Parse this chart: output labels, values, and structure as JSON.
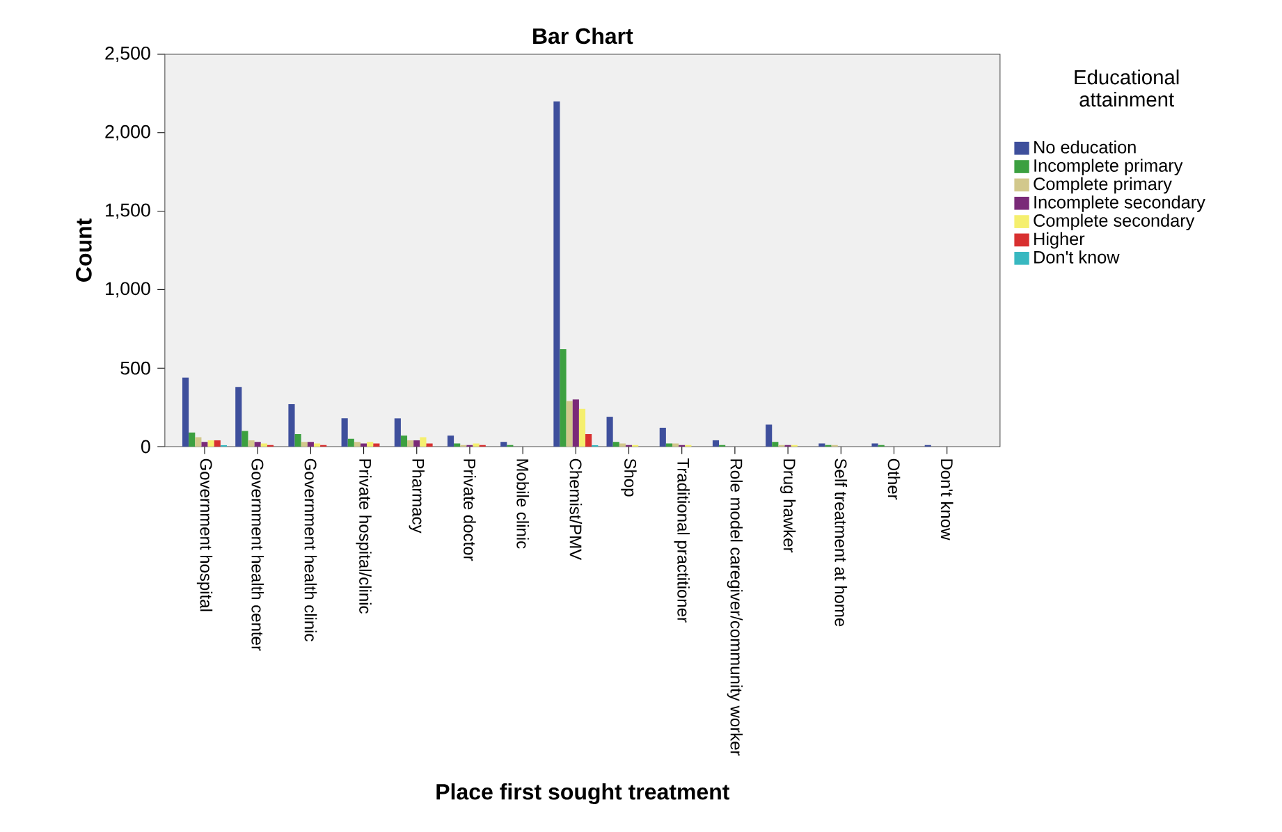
{
  "chart_data": {
    "type": "bar",
    "title": "Bar Chart",
    "xlabel": "Place first sought treatment",
    "ylabel": "Count",
    "legend_title": "Educational attainment",
    "legend": "right",
    "grid": false,
    "categories": [
      "Government hospital",
      "Government health center",
      "Government health clinic",
      "Private hospital/clinic",
      "Pharmacy",
      "Private doctor",
      "Mobile clinic",
      "Chemist/PMV",
      "Shop",
      "Traditional practitioner",
      "Role model caregiver/community worker",
      "Drug hawker",
      "Self treatment at home",
      "Other",
      "Don't know"
    ],
    "ylim": [
      0,
      2500
    ],
    "yticks": [
      0,
      500,
      {
        "value": 1000,
        "label": "1,000"
      },
      {
        "value": 1500,
        "label": "1,500"
      },
      {
        "value": 2000,
        "label": "2,000"
      },
      {
        "value": 2500,
        "label": "2,500"
      }
    ],
    "series": [
      {
        "name": "No education",
        "color": "#3e4f9c",
        "values": [
          440,
          380,
          270,
          180,
          180,
          70,
          30,
          2200,
          190,
          120,
          40,
          140,
          20,
          20,
          10
        ]
      },
      {
        "name": "Incomplete primary",
        "color": "#3ca040",
        "values": [
          90,
          100,
          80,
          50,
          70,
          20,
          10,
          620,
          30,
          20,
          10,
          30,
          10,
          10,
          0
        ]
      },
      {
        "name": "Complete primary",
        "color": "#d2c88c",
        "values": [
          60,
          40,
          30,
          30,
          40,
          10,
          0,
          290,
          20,
          20,
          0,
          10,
          10,
          0,
          0
        ]
      },
      {
        "name": "Incomplete secondary",
        "color": "#7a2a78",
        "values": [
          30,
          30,
          30,
          20,
          40,
          10,
          0,
          300,
          10,
          10,
          0,
          10,
          0,
          0,
          0
        ]
      },
      {
        "name": "Complete secondary",
        "color": "#f5ef6e",
        "values": [
          40,
          20,
          20,
          30,
          60,
          20,
          0,
          240,
          10,
          10,
          0,
          10,
          0,
          0,
          0
        ]
      },
      {
        "name": "Higher",
        "color": "#d83030",
        "values": [
          40,
          10,
          10,
          20,
          20,
          10,
          0,
          80,
          0,
          0,
          0,
          0,
          0,
          0,
          0
        ]
      },
      {
        "name": "Don't know",
        "color": "#38b8c0",
        "values": [
          10,
          0,
          0,
          0,
          0,
          0,
          0,
          10,
          0,
          0,
          0,
          0,
          0,
          0,
          0
        ]
      }
    ]
  }
}
